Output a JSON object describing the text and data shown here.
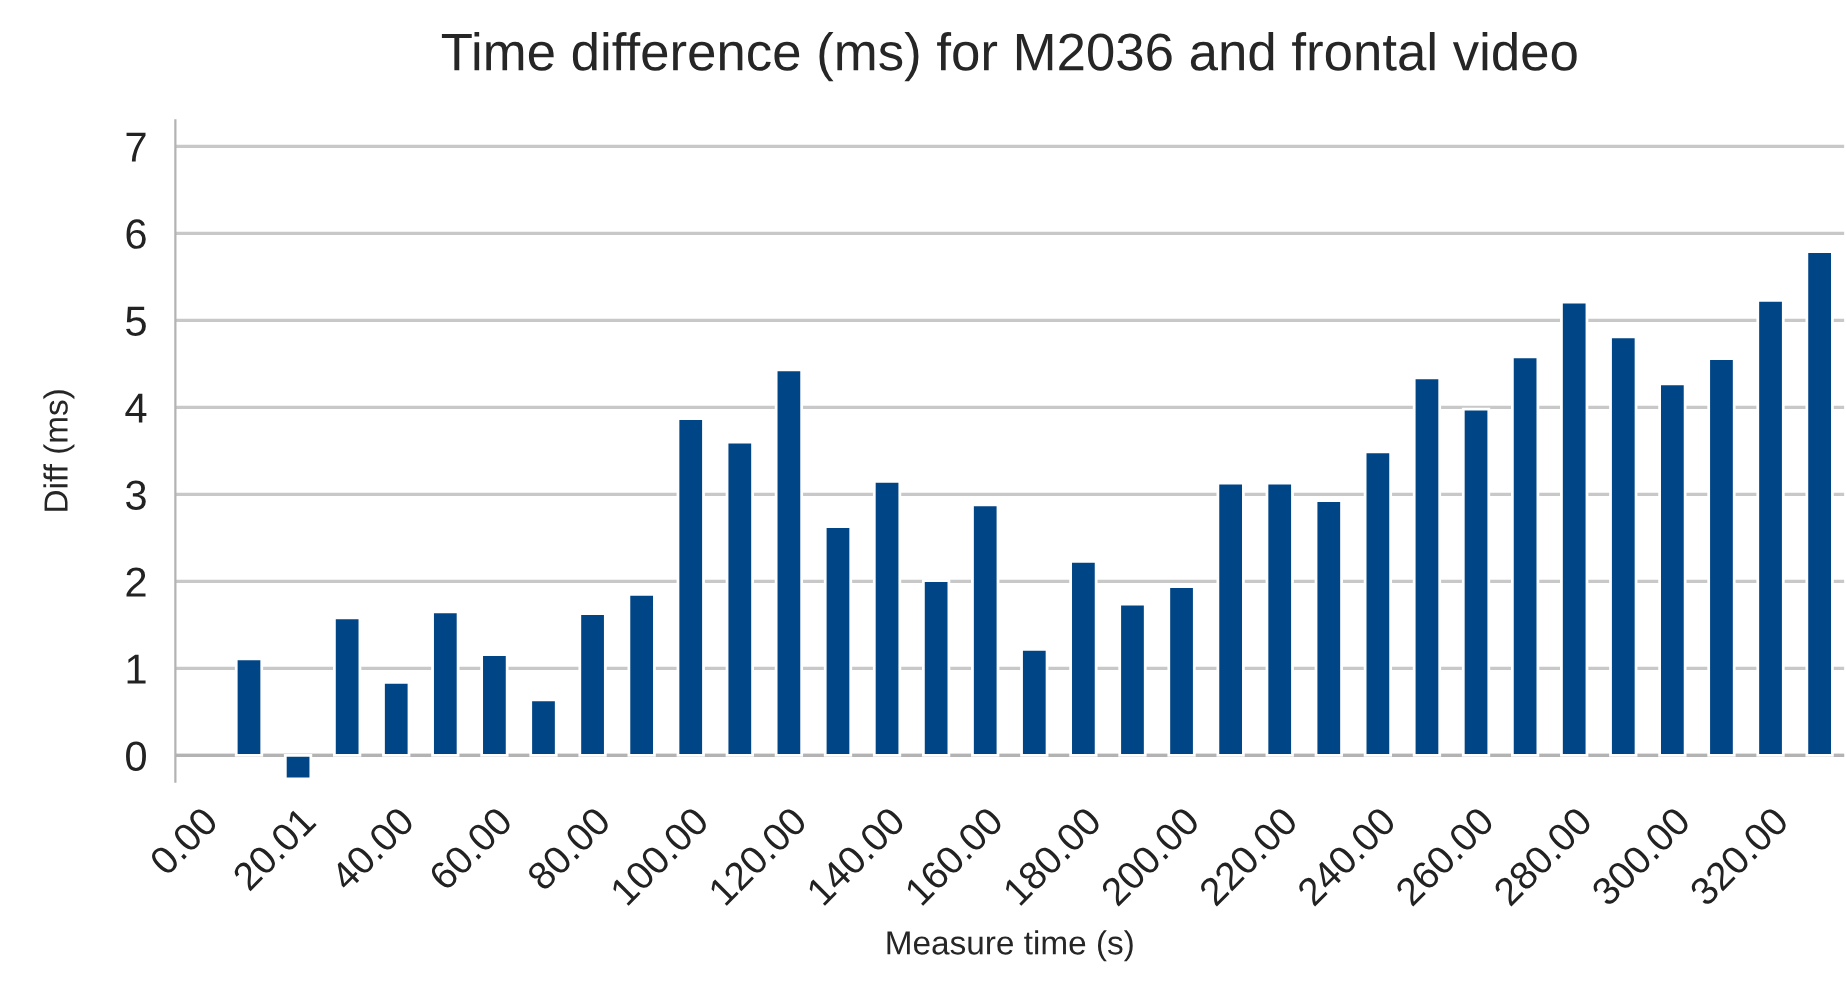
{
  "chart_data": {
    "type": "bar",
    "title": "Time difference (ms) for M2036 and frontal video",
    "xlabel": "Measure time (s)",
    "ylabel": "Diff (ms)",
    "categories": [
      "0.00",
      null,
      "20.01",
      null,
      "40.00",
      null,
      "60.00",
      null,
      "80.00",
      null,
      "100.00",
      null,
      "120.00",
      null,
      "140.00",
      null,
      "160.00",
      null,
      "180.00",
      null,
      "200.00",
      null,
      "220.00",
      null,
      "240.00",
      null,
      "260.00",
      null,
      "280.00",
      null,
      "300.00",
      null,
      "320.00",
      null
    ],
    "values": [
      null,
      1.11,
      -0.27,
      1.58,
      0.84,
      1.65,
      1.16,
      0.64,
      1.63,
      1.85,
      3.87,
      3.6,
      4.43,
      2.63,
      3.15,
      2.01,
      2.88,
      1.22,
      2.23,
      1.74,
      1.94,
      3.13,
      3.13,
      2.93,
      3.49,
      4.34,
      3.98,
      4.58,
      5.21,
      4.81,
      4.27,
      4.56,
      5.23,
      5.79
    ],
    "color": "#004586",
    "ylim": [
      -0.3,
      7.3
    ],
    "yticks": [
      0,
      1,
      2,
      3,
      4,
      5,
      6,
      7
    ],
    "grid": "y",
    "legend": false
  }
}
